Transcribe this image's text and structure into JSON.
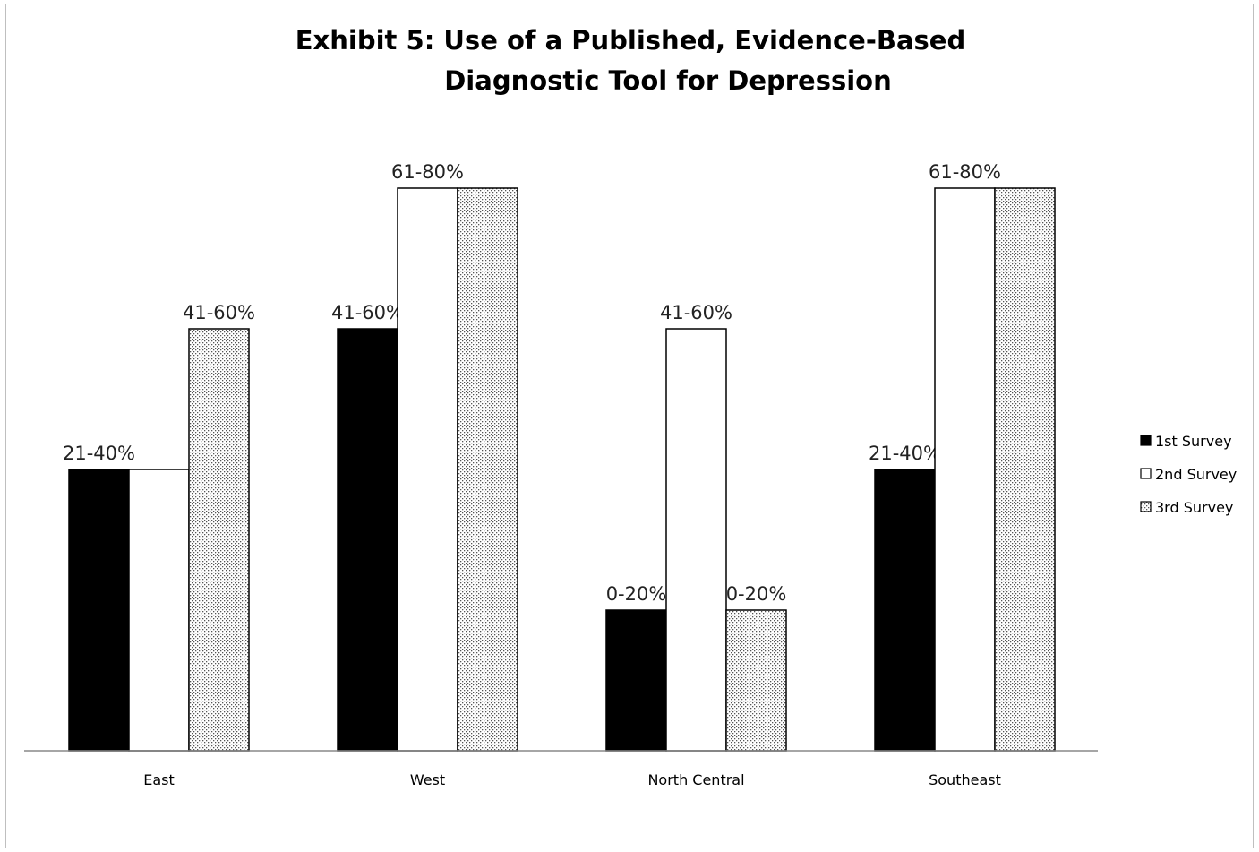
{
  "chart_data": {
    "type": "bar",
    "title_lines": [
      "Exhibit 5: Use of a Published, Evidence-Based",
      "Diagnostic Tool for Depression"
    ],
    "categories": [
      "East",
      "West",
      "North Central",
      "Southeast"
    ],
    "ylim": [
      0,
      4
    ],
    "series": [
      {
        "name": "1st Survey",
        "values": [
          2,
          3,
          1,
          2
        ],
        "labels": [
          "21-40%",
          "41-60%",
          "0-20%",
          "21-40%"
        ],
        "fill": "#000000"
      },
      {
        "name": "2nd Survey",
        "values": [
          2,
          4,
          3,
          4
        ],
        "labels": [
          "",
          "61-80%",
          "41-60%",
          "61-80%"
        ],
        "fill": "#ffffff"
      },
      {
        "name": "3rd Survey",
        "values": [
          3,
          4,
          1,
          4
        ],
        "labels": [
          "41-60%",
          "",
          "0-20%",
          ""
        ],
        "fill": "pattern"
      }
    ],
    "legend_position": "right",
    "grid": false
  }
}
